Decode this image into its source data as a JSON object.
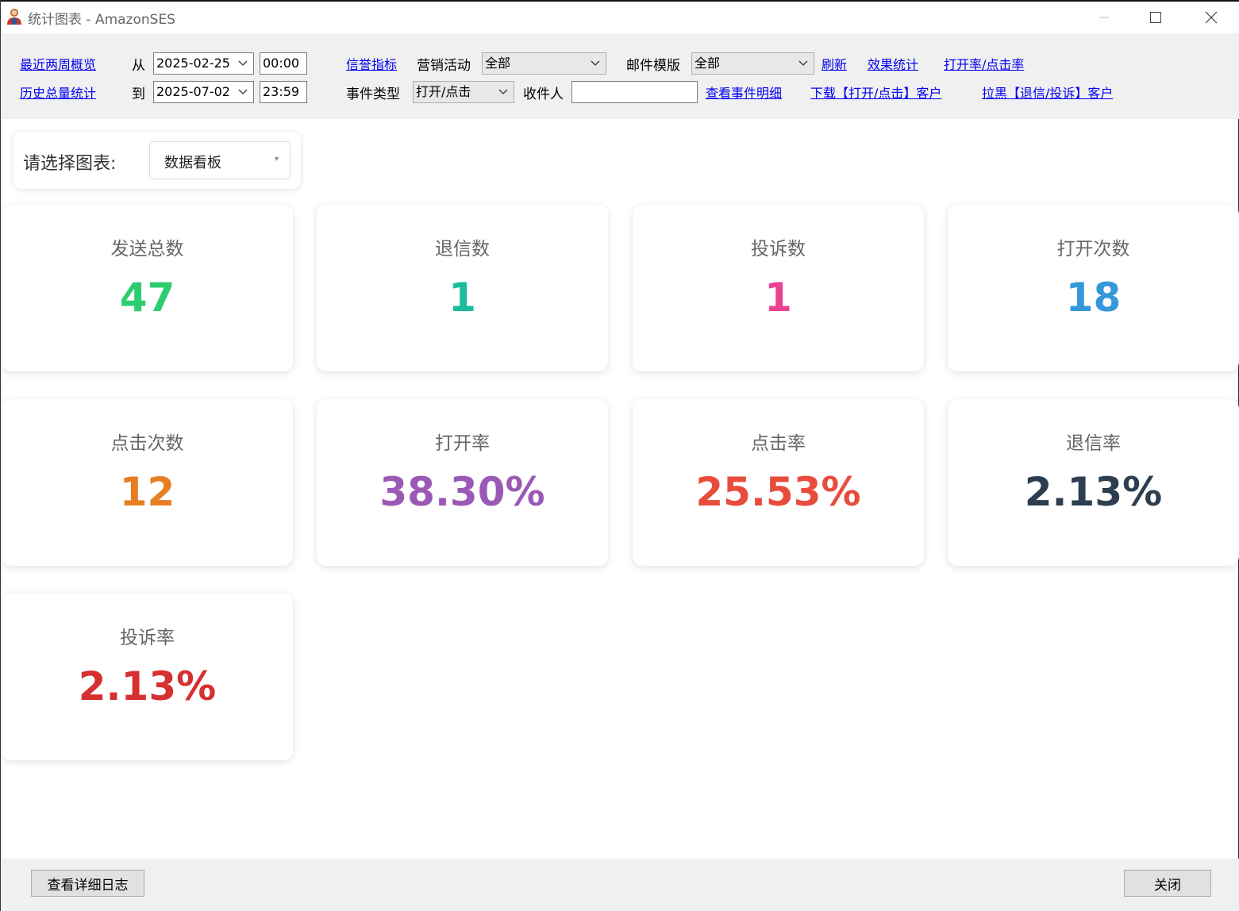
{
  "window": {
    "title": "统计图表 - AmazonSES",
    "icon": "user-avatar-icon"
  },
  "toolbar": {
    "recent_two_weeks_link": "最近两周概览",
    "history_total_link": "历史总量统计",
    "from_label": "从",
    "to_label": "到",
    "from_date": "2025-02-25",
    "from_time": "00:00",
    "to_date": "2025-07-02",
    "to_time": "23:59",
    "reputation_link": "信誉指标",
    "campaign_label": "营销活动",
    "campaign_value": "全部",
    "template_label": "邮件模版",
    "template_value": "全部",
    "refresh_link": "刷新",
    "effect_stats_link": "效果统计",
    "open_click_rate_link": "打开率/点击率",
    "event_type_label": "事件类型",
    "event_type_value": "打开/点击",
    "recipient_label": "收件人",
    "recipient_value": "",
    "view_event_details_link": "查看事件明细",
    "download_open_click_link": "下载【打开/点击】客户",
    "blacklist_bounce_complaint_link": "拉黑【退信/投诉】客户"
  },
  "chart_selector": {
    "label": "请选择图表:",
    "value": "数据看板"
  },
  "stats": [
    {
      "title": "发送总数",
      "value": "47",
      "color": "#2ecc71"
    },
    {
      "title": "退信数",
      "value": "1",
      "color": "#1abc9c"
    },
    {
      "title": "投诉数",
      "value": "1",
      "color": "#e84393"
    },
    {
      "title": "打开次数",
      "value": "18",
      "color": "#3498db"
    },
    {
      "title": "点击次数",
      "value": "12",
      "color": "#e67e22"
    },
    {
      "title": "打开率",
      "value": "38.30%",
      "color": "#9b59b6"
    },
    {
      "title": "点击率",
      "value": "25.53%",
      "color": "#e74c3c"
    },
    {
      "title": "退信率",
      "value": "2.13%",
      "color": "#2c3e50"
    },
    {
      "title": "投诉率",
      "value": "2.13%",
      "color": "#d63031"
    }
  ],
  "footer": {
    "view_log_button": "查看详细日志",
    "close_button": "关闭"
  }
}
